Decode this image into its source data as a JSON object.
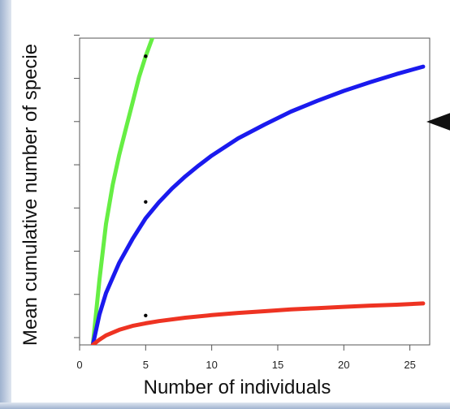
{
  "chart_data": {
    "type": "line",
    "title": "",
    "xlabel": "Number of individuals",
    "ylabel": "Mean cumulative number of specie",
    "xlim": [
      0,
      26.5
    ],
    "ylim": [
      1,
      8.1
    ],
    "xticks": [
      0,
      5,
      10,
      15,
      20,
      25
    ],
    "yticks": [
      1,
      2,
      3,
      4,
      5,
      6,
      7,
      8
    ],
    "grid": false,
    "legend": "none",
    "series": [
      {
        "color": "#66ee44",
        "x": [
          1,
          1.5,
          2,
          2.5,
          3,
          3.5,
          4,
          4.5,
          5,
          5.5
        ],
        "y": [
          1,
          2.5,
          3.8,
          4.7,
          5.4,
          6.0,
          6.6,
          7.2,
          7.68,
          8.1
        ]
      },
      {
        "color": "#1a1aee",
        "x": [
          1,
          1.5,
          2,
          3,
          4,
          5,
          6,
          7,
          8,
          9,
          10,
          12,
          14,
          16,
          18,
          20,
          22,
          24,
          26
        ],
        "y": [
          1,
          1.7,
          2.2,
          2.9,
          3.45,
          3.93,
          4.3,
          4.62,
          4.9,
          5.15,
          5.38,
          5.78,
          6.1,
          6.4,
          6.65,
          6.88,
          7.08,
          7.27,
          7.44
        ]
      },
      {
        "color": "#ee3322",
        "x": [
          1,
          1.5,
          2,
          3,
          4,
          5,
          6,
          8,
          10,
          12,
          14,
          16,
          18,
          20,
          22,
          24,
          26
        ],
        "y": [
          1,
          1.12,
          1.22,
          1.35,
          1.44,
          1.5,
          1.55,
          1.63,
          1.69,
          1.74,
          1.78,
          1.82,
          1.85,
          1.88,
          1.91,
          1.93,
          1.96
        ]
      }
    ],
    "markers": [
      {
        "x": 5,
        "y": 7.68
      },
      {
        "x": 5,
        "y": 4.31
      },
      {
        "x": 5,
        "y": 1.68
      }
    ],
    "annotation": {
      "type": "arrow",
      "pointing": "left",
      "color": "#111111"
    }
  }
}
